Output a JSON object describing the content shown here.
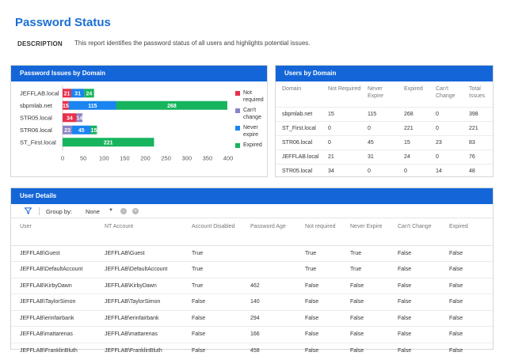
{
  "page": {
    "title": "Password Status",
    "description_label": "DESCRIPTION",
    "description_text": "This report identifies the password status of all users and highlights potential issues."
  },
  "issues_panel": {
    "title": "Password Issues by Domain",
    "legend": [
      {
        "label": "Not required",
        "color": "#e8304a"
      },
      {
        "label": "Can't change",
        "color": "#8a84c8"
      },
      {
        "label": "Never expire",
        "color": "#1a84f0"
      },
      {
        "label": "Expired",
        "color": "#17b45e"
      }
    ]
  },
  "chart_data": {
    "type": "bar",
    "orientation": "horizontal",
    "stacked": true,
    "categories": [
      "JEFFLAB.local",
      "sbpmlab.net",
      "STR05.local",
      "STR06.local",
      "ST_First.local"
    ],
    "series": [
      {
        "name": "Not required",
        "color": "#e8304a",
        "values": [
          21,
          15,
          34,
          0,
          0
        ]
      },
      {
        "name": "Can't change",
        "color": "#8a84c8",
        "values": [
          0,
          0,
          14,
          23,
          0
        ]
      },
      {
        "name": "Never expire",
        "color": "#1a84f0",
        "values": [
          31,
          115,
          0,
          45,
          0
        ]
      },
      {
        "name": "Expired",
        "color": "#17b45e",
        "values": [
          24,
          268,
          0,
          15,
          221
        ]
      }
    ],
    "xlim": [
      0,
      400
    ],
    "xticks": [
      "0",
      "50",
      "100",
      "150",
      "200",
      "250",
      "300",
      "350",
      "400"
    ],
    "legend_position": "right"
  },
  "users_panel": {
    "title": "Users by Domain",
    "columns": [
      "Domain",
      "Not Required",
      "Never Expire",
      "Expired",
      "Can't Change",
      "Total Issues"
    ],
    "rows": [
      [
        "sbpmlab.net",
        "15",
        "115",
        "268",
        "0",
        "398"
      ],
      [
        "ST_First.local",
        "0",
        "0",
        "221",
        "0",
        "221"
      ],
      [
        "STR06.local",
        "0",
        "45",
        "15",
        "23",
        "83"
      ],
      [
        "JEFFLAB.local",
        "21",
        "31",
        "24",
        "0",
        "76"
      ],
      [
        "STR05.local",
        "34",
        "0",
        "0",
        "14",
        "48"
      ]
    ]
  },
  "details_panel": {
    "title": "User Details",
    "group_by_label": "Group by:",
    "group_by_value": "None",
    "columns": [
      "User",
      "NT Account",
      "Account Disabled",
      "Password Age",
      "Not required",
      "Never Expire",
      "Can't Change",
      "Expired"
    ],
    "rows": [
      [
        "JEFFLAB\\Guest",
        "JEFFLAB\\Guest",
        "True",
        "",
        "True",
        "True",
        "False",
        "False"
      ],
      [
        "JEFFLAB\\DefaultAccount",
        "JEFFLAB\\DefaultAccount",
        "True",
        "",
        "True",
        "True",
        "False",
        "False"
      ],
      [
        "JEFFLAB\\KirbyDawn",
        "JEFFLAB\\KirbyDawn",
        "True",
        "462",
        "False",
        "False",
        "False",
        "False"
      ],
      [
        "JEFFLAB\\TaylorSimon",
        "JEFFLAB\\TaylorSimon",
        "False",
        "140",
        "False",
        "False",
        "False",
        "False"
      ],
      [
        "JEFFLAB\\erinfairbank",
        "JEFFLAB\\erinfairbank",
        "False",
        "294",
        "False",
        "False",
        "False",
        "False"
      ],
      [
        "JEFFLAB\\mattarenas",
        "JEFFLAB\\mattarenas",
        "False",
        "166",
        "False",
        "False",
        "False",
        "False"
      ],
      [
        "JEFFLAB\\FranklinBluth",
        "JEFFLAB\\FranklinBluth",
        "False",
        "458",
        "False",
        "False",
        "False",
        "False"
      ]
    ]
  },
  "colors": {
    "accent": "#1466d8",
    "title": "#1a6fd4"
  }
}
